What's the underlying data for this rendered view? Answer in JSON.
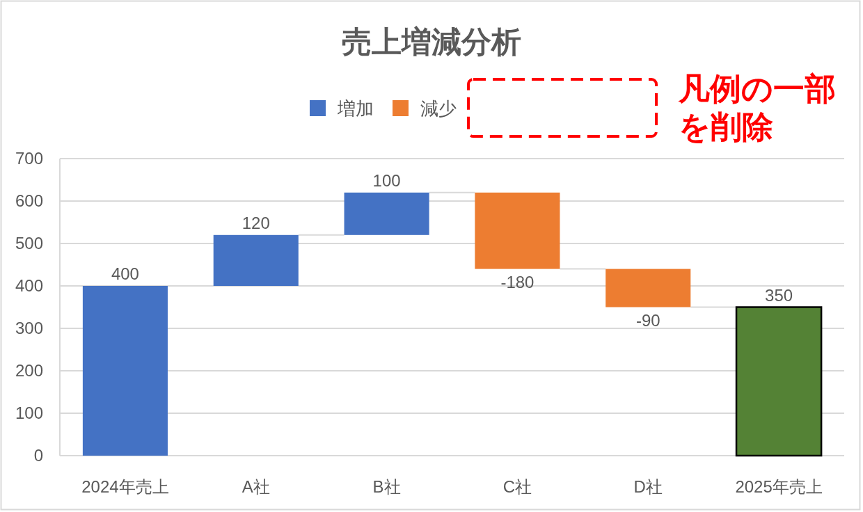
{
  "chart_data": {
    "type": "bar",
    "title": "売上増減分析",
    "categories": [
      "2024年売上",
      "A社",
      "B社",
      "C社",
      "D社",
      "2025年売上"
    ],
    "series": [
      {
        "name": "増加",
        "color": "#4472c4",
        "values": [
          400,
          120,
          100,
          null,
          null,
          null
        ],
        "base": [
          0,
          400,
          520,
          null,
          null,
          null
        ]
      },
      {
        "name": "減少",
        "color": "#ed7d31",
        "values": [
          null,
          null,
          null,
          -180,
          -90,
          null
        ],
        "base": [
          null,
          null,
          null,
          620,
          440,
          null
        ]
      },
      {
        "color": "#548235",
        "values": [
          null,
          null,
          null,
          null,
          null,
          350
        ],
        "base": [
          null,
          null,
          null,
          null,
          null,
          0
        ]
      }
    ],
    "ylim": [
      0,
      700
    ],
    "yticks": [
      0,
      100,
      200,
      300,
      400,
      500,
      600,
      700
    ],
    "grid": "y",
    "legend": "top",
    "data_labels": true,
    "annotations": [
      "凡例の一部を削除"
    ]
  }
}
